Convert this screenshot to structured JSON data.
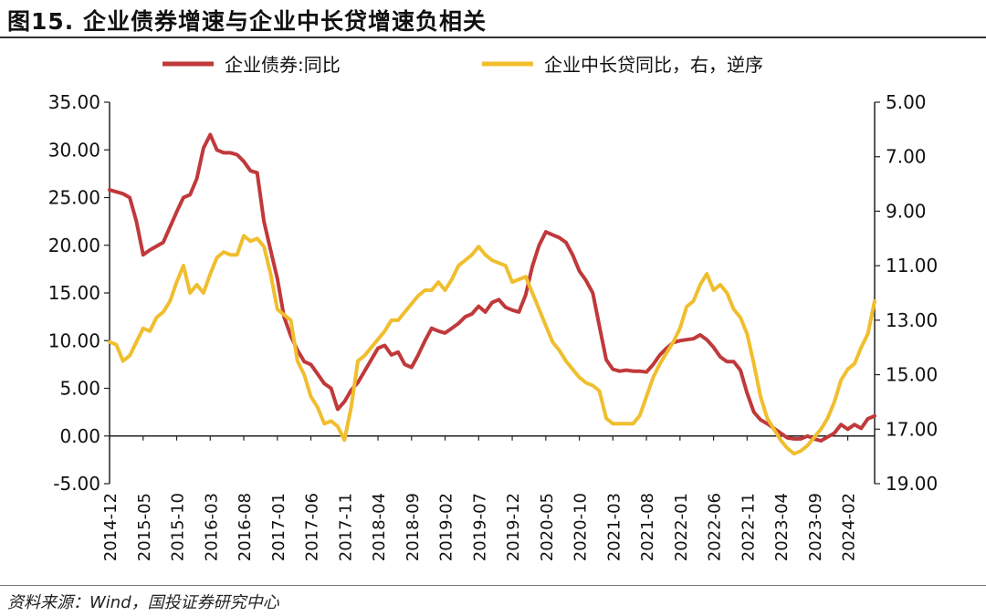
{
  "header": {
    "title": "图15. 企业债券增速与企业中长贷增速负相关"
  },
  "footer": {
    "source": "资料来源：Wind，国投证券研究中心"
  },
  "colors": {
    "series_left": "#C0393B",
    "series_right": "#F0BE2E",
    "axis": "#222222"
  },
  "chart_data": {
    "type": "line",
    "title": "",
    "legend_placement": "top",
    "grid": false,
    "x_ticks": [
      "2014-12",
      "2015-05",
      "2015-10",
      "2016-03",
      "2016-08",
      "2017-01",
      "2017-06",
      "2017-11",
      "2018-04",
      "2018-09",
      "2019-02",
      "2019-07",
      "2019-12",
      "2020-05",
      "2020-10",
      "2021-03",
      "2021-08",
      "2022-01",
      "2022-06",
      "2022-11",
      "2023-04",
      "2023-09",
      "2024-02"
    ],
    "x_range": [
      "2014-12",
      "2024-06"
    ],
    "left_axis": {
      "range": [
        -5,
        35
      ],
      "tick_labels": [
        "-5.00",
        "0.00",
        "5.00",
        "10.00",
        "15.00",
        "20.00",
        "25.00",
        "30.00",
        "35.00"
      ]
    },
    "right_axis": {
      "range": [
        19,
        5
      ],
      "reversed": true,
      "tick_labels": [
        "5.00",
        "7.00",
        "9.00",
        "11.00",
        "13.00",
        "15.00",
        "17.00",
        "19.00"
      ]
    },
    "series": [
      {
        "name": "企业债券:同比",
        "axis": "left",
        "points": [
          [
            "2014-12",
            25.8
          ],
          [
            "2015-02",
            25.4
          ],
          [
            "2015-03",
            25.0
          ],
          [
            "2015-04",
            22.5
          ],
          [
            "2015-05",
            19.0
          ],
          [
            "2015-06",
            19.5
          ],
          [
            "2015-08",
            20.3
          ],
          [
            "2015-10",
            23.5
          ],
          [
            "2015-11",
            25.0
          ],
          [
            "2015-12",
            25.3
          ],
          [
            "2016-01",
            27.0
          ],
          [
            "2016-02",
            30.2
          ],
          [
            "2016-03",
            31.6
          ],
          [
            "2016-04",
            30.0
          ],
          [
            "2016-05",
            29.7
          ],
          [
            "2016-06",
            29.7
          ],
          [
            "2016-07",
            29.5
          ],
          [
            "2016-08",
            28.8
          ],
          [
            "2016-09",
            27.8
          ],
          [
            "2016-10",
            27.6
          ],
          [
            "2016-11",
            22.5
          ],
          [
            "2016-12",
            19.5
          ],
          [
            "2017-01",
            16.5
          ],
          [
            "2017-02",
            12.5
          ],
          [
            "2017-03",
            10.5
          ],
          [
            "2017-04",
            9.0
          ],
          [
            "2017-05",
            7.8
          ],
          [
            "2017-06",
            7.5
          ],
          [
            "2017-07",
            6.5
          ],
          [
            "2017-08",
            5.5
          ],
          [
            "2017-09",
            5.0
          ],
          [
            "2017-10",
            2.8
          ],
          [
            "2017-11",
            3.6
          ],
          [
            "2017-12",
            4.8
          ],
          [
            "2018-01",
            5.6
          ],
          [
            "2018-02",
            6.8
          ],
          [
            "2018-03",
            8.0
          ],
          [
            "2018-04",
            9.2
          ],
          [
            "2018-05",
            9.5
          ],
          [
            "2018-06",
            8.5
          ],
          [
            "2018-07",
            8.8
          ],
          [
            "2018-08",
            7.5
          ],
          [
            "2018-09",
            7.2
          ],
          [
            "2018-10",
            8.5
          ],
          [
            "2018-11",
            10.0
          ],
          [
            "2018-12",
            11.3
          ],
          [
            "2019-01",
            11.0
          ],
          [
            "2019-02",
            10.8
          ],
          [
            "2019-03",
            11.3
          ],
          [
            "2019-04",
            11.8
          ],
          [
            "2019-05",
            12.5
          ],
          [
            "2019-06",
            12.8
          ],
          [
            "2019-07",
            13.6
          ],
          [
            "2019-08",
            13.0
          ],
          [
            "2019-09",
            14.0
          ],
          [
            "2019-10",
            14.3
          ],
          [
            "2019-11",
            13.5
          ],
          [
            "2019-12",
            13.2
          ],
          [
            "2020-01",
            13.0
          ],
          [
            "2020-02",
            14.8
          ],
          [
            "2020-03",
            17.8
          ],
          [
            "2020-04",
            20.0
          ],
          [
            "2020-05",
            21.4
          ],
          [
            "2020-06",
            21.1
          ],
          [
            "2020-07",
            20.8
          ],
          [
            "2020-08",
            20.3
          ],
          [
            "2020-09",
            19.0
          ],
          [
            "2020-10",
            17.3
          ],
          [
            "2020-11",
            16.3
          ],
          [
            "2020-12",
            15.0
          ],
          [
            "2021-01",
            11.5
          ],
          [
            "2021-02",
            8.0
          ],
          [
            "2021-03",
            7.0
          ],
          [
            "2021-04",
            6.8
          ],
          [
            "2021-05",
            6.9
          ],
          [
            "2021-06",
            6.8
          ],
          [
            "2021-07",
            6.8
          ],
          [
            "2021-08",
            6.7
          ],
          [
            "2021-09",
            7.5
          ],
          [
            "2021-10",
            8.5
          ],
          [
            "2021-11",
            9.2
          ],
          [
            "2021-12",
            9.8
          ],
          [
            "2022-01",
            10.0
          ],
          [
            "2022-02",
            10.1
          ],
          [
            "2022-03",
            10.2
          ],
          [
            "2022-04",
            10.6
          ],
          [
            "2022-05",
            10.1
          ],
          [
            "2022-06",
            9.3
          ],
          [
            "2022-07",
            8.3
          ],
          [
            "2022-08",
            7.8
          ],
          [
            "2022-09",
            7.8
          ],
          [
            "2022-10",
            6.9
          ],
          [
            "2022-11",
            4.5
          ],
          [
            "2022-12",
            2.5
          ],
          [
            "2023-01",
            1.7
          ],
          [
            "2023-02",
            1.3
          ],
          [
            "2023-03",
            0.8
          ],
          [
            "2023-04",
            0.3
          ],
          [
            "2023-05",
            -0.2
          ],
          [
            "2023-06",
            -0.3
          ],
          [
            "2023-07",
            -0.3
          ],
          [
            "2023-08",
            0.0
          ],
          [
            "2023-09",
            -0.3
          ],
          [
            "2023-10",
            -0.5
          ],
          [
            "2023-11",
            -0.1
          ],
          [
            "2023-12",
            0.3
          ],
          [
            "2024-01",
            1.2
          ],
          [
            "2024-02",
            0.7
          ],
          [
            "2024-03",
            1.2
          ],
          [
            "2024-04",
            0.8
          ],
          [
            "2024-05",
            1.8
          ],
          [
            "2024-06",
            2.1
          ]
        ]
      },
      {
        "name": "企业中长贷同比，右，逆序",
        "axis": "right",
        "points": [
          [
            "2014-12",
            13.8
          ],
          [
            "2015-01",
            13.9
          ],
          [
            "2015-02",
            14.5
          ],
          [
            "2015-03",
            14.3
          ],
          [
            "2015-04",
            13.8
          ],
          [
            "2015-05",
            13.3
          ],
          [
            "2015-06",
            13.4
          ],
          [
            "2015-07",
            12.9
          ],
          [
            "2015-08",
            12.7
          ],
          [
            "2015-09",
            12.3
          ],
          [
            "2015-10",
            11.6
          ],
          [
            "2015-11",
            11.0
          ],
          [
            "2015-12",
            12.0
          ],
          [
            "2016-01",
            11.7
          ],
          [
            "2016-02",
            12.0
          ],
          [
            "2016-03",
            11.3
          ],
          [
            "2016-04",
            10.7
          ],
          [
            "2016-05",
            10.5
          ],
          [
            "2016-06",
            10.6
          ],
          [
            "2016-07",
            10.6
          ],
          [
            "2016-08",
            9.9
          ],
          [
            "2016-09",
            10.1
          ],
          [
            "2016-10",
            10.0
          ],
          [
            "2016-11",
            10.3
          ],
          [
            "2016-12",
            11.3
          ],
          [
            "2017-01",
            12.6
          ],
          [
            "2017-02",
            12.8
          ],
          [
            "2017-03",
            13.0
          ],
          [
            "2017-04",
            14.5
          ],
          [
            "2017-05",
            15.0
          ],
          [
            "2017-06",
            15.8
          ],
          [
            "2017-07",
            16.2
          ],
          [
            "2017-08",
            16.8
          ],
          [
            "2017-09",
            16.7
          ],
          [
            "2017-10",
            16.9
          ],
          [
            "2017-11",
            17.4
          ],
          [
            "2017-12",
            16.2
          ],
          [
            "2018-01",
            14.5
          ],
          [
            "2018-02",
            14.3
          ],
          [
            "2018-03",
            14.0
          ],
          [
            "2018-04",
            13.7
          ],
          [
            "2018-05",
            13.4
          ],
          [
            "2018-06",
            13.0
          ],
          [
            "2018-07",
            13.0
          ],
          [
            "2018-08",
            12.7
          ],
          [
            "2018-09",
            12.4
          ],
          [
            "2018-10",
            12.1
          ],
          [
            "2018-11",
            11.9
          ],
          [
            "2018-12",
            11.9
          ],
          [
            "2019-01",
            11.6
          ],
          [
            "2019-02",
            11.9
          ],
          [
            "2019-03",
            11.5
          ],
          [
            "2019-04",
            11.0
          ],
          [
            "2019-05",
            10.8
          ],
          [
            "2019-06",
            10.6
          ],
          [
            "2019-07",
            10.3
          ],
          [
            "2019-08",
            10.6
          ],
          [
            "2019-09",
            10.8
          ],
          [
            "2019-10",
            10.9
          ],
          [
            "2019-11",
            11.0
          ],
          [
            "2019-12",
            11.6
          ],
          [
            "2020-01",
            11.5
          ],
          [
            "2020-02",
            11.4
          ],
          [
            "2020-03",
            12.0
          ],
          [
            "2020-04",
            12.6
          ],
          [
            "2020-05",
            13.2
          ],
          [
            "2020-06",
            13.8
          ],
          [
            "2020-07",
            14.1
          ],
          [
            "2020-08",
            14.5
          ],
          [
            "2020-09",
            14.8
          ],
          [
            "2020-10",
            15.1
          ],
          [
            "2020-11",
            15.3
          ],
          [
            "2020-12",
            15.4
          ],
          [
            "2021-01",
            15.6
          ],
          [
            "2021-02",
            16.6
          ],
          [
            "2021-03",
            16.8
          ],
          [
            "2021-04",
            16.8
          ],
          [
            "2021-05",
            16.8
          ],
          [
            "2021-06",
            16.8
          ],
          [
            "2021-07",
            16.5
          ],
          [
            "2021-08",
            15.8
          ],
          [
            "2021-09",
            15.1
          ],
          [
            "2021-10",
            14.6
          ],
          [
            "2021-11",
            14.2
          ],
          [
            "2021-12",
            13.8
          ],
          [
            "2022-01",
            13.3
          ],
          [
            "2022-02",
            12.5
          ],
          [
            "2022-03",
            12.3
          ],
          [
            "2022-04",
            11.7
          ],
          [
            "2022-05",
            11.3
          ],
          [
            "2022-06",
            11.9
          ],
          [
            "2022-07",
            11.7
          ],
          [
            "2022-08",
            12.0
          ],
          [
            "2022-09",
            12.6
          ],
          [
            "2022-10",
            12.9
          ],
          [
            "2022-11",
            13.5
          ],
          [
            "2022-12",
            14.6
          ],
          [
            "2023-01",
            15.8
          ],
          [
            "2023-02",
            16.6
          ],
          [
            "2023-03",
            17.0
          ],
          [
            "2023-04",
            17.4
          ],
          [
            "2023-05",
            17.7
          ],
          [
            "2023-06",
            17.9
          ],
          [
            "2023-07",
            17.8
          ],
          [
            "2023-08",
            17.6
          ],
          [
            "2023-09",
            17.3
          ],
          [
            "2023-10",
            17.0
          ],
          [
            "2023-11",
            16.6
          ],
          [
            "2023-12",
            16.0
          ],
          [
            "2024-01",
            15.2
          ],
          [
            "2024-02",
            14.8
          ],
          [
            "2024-03",
            14.6
          ],
          [
            "2024-04",
            14.0
          ],
          [
            "2024-05",
            13.5
          ],
          [
            "2024-06",
            12.3
          ]
        ]
      }
    ]
  }
}
